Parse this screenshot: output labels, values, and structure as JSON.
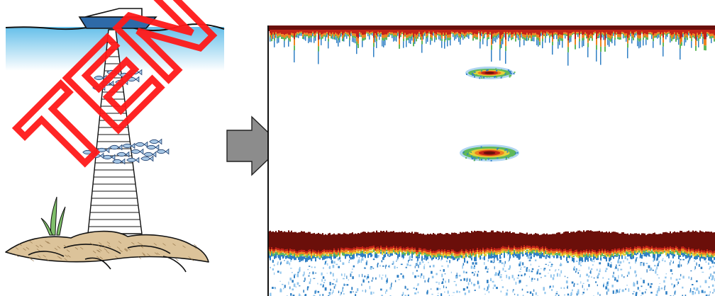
{
  "watermark": {
    "text": "TEN"
  },
  "illustration": {
    "boat": "boat-icon",
    "water": "water-surface",
    "beam": "sonar-beam",
    "fish_school_upper": "fish-school-upper",
    "fish_school_lower": "fish-school-lower",
    "seabed": "seabed-rocks",
    "plant": "seaweed-plant",
    "colors": {
      "water": "#4ab4e6",
      "boat": "#2e6aa8",
      "rock": "#dcc39a",
      "fish": "#a8c8e6"
    }
  },
  "arrow": {
    "direction": "right",
    "color": "#8c8c8c"
  },
  "echogram": {
    "layers": [
      "surface-clutter",
      "fish-echo-upper",
      "fish-echo-lower",
      "bottom-echo",
      "sub-bottom-speckle"
    ],
    "colors": {
      "bottom": "#6b0f0a",
      "red": "#c42418",
      "orange": "#ee8420",
      "yellow": "#e6d23a",
      "green": "#5fb85a",
      "blue": "#2f7fc4",
      "light_blue": "#8fc4ec"
    }
  }
}
